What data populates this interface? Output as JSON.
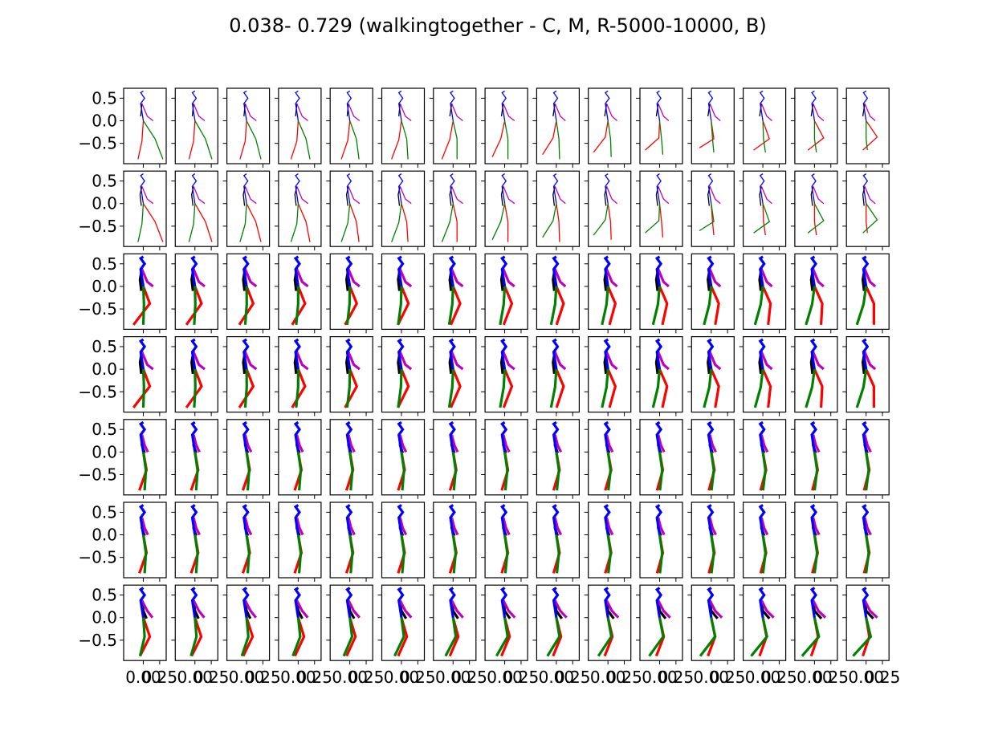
{
  "figure": {
    "title": "0.038- 0.729 (walkingtogether - C, M, R-5000-10000, B)"
  },
  "chart_data": {
    "type": "line",
    "grid": false,
    "layout": {
      "rows": 7,
      "cols": 15,
      "sharex": true,
      "sharey": true
    },
    "title": "0.038- 0.729 (walkingtogether - C, M, R-5000-10000, B)",
    "xlim": [
      -0.3,
      0.35
    ],
    "ylim": [
      -0.95,
      0.72
    ],
    "y_ticks": [
      0.5,
      0.0,
      -0.5
    ],
    "y_tick_labels": [
      "0.5",
      "0.0",
      "−0.5"
    ],
    "x_ticks": [
      0.0,
      0.25
    ],
    "x_tick_labels": [
      "0.00",
      "0.25"
    ],
    "limb_colors": {
      "spine": "#0000ff",
      "left_arm": "#000000",
      "right_arm": "#bf00bf",
      "left_leg": "#ff0000",
      "right_leg": "#008000"
    },
    "row_line_widths": [
      1.3,
      1.3,
      3.2,
      3.2,
      3.2,
      3.2,
      3.2
    ],
    "sequences": [
      {
        "row": 0,
        "frames": [
          {
            "rl": [
              [
                0.0,
                0.0
              ],
              [
                -0.02,
                -0.45
              ],
              [
                -0.08,
                -0.85
              ]
            ],
            "gl": [
              [
                0.0,
                0.0
              ],
              [
                0.18,
                -0.4
              ],
              [
                0.3,
                -0.85
              ]
            ],
            "ka": [
              [
                -0.02,
                0.38
              ],
              [
                -0.04,
                0.1
              ]
            ],
            "ma": [
              [
                -0.02,
                0.38
              ],
              [
                0.06,
                0.1
              ],
              [
                0.15,
                0.0
              ]
            ]
          },
          {
            "rl": [
              [
                0.0,
                0.0
              ],
              [
                -0.02,
                -0.45
              ],
              [
                -0.09,
                -0.85
              ]
            ],
            "gl": [
              [
                0.0,
                0.0
              ],
              [
                0.16,
                -0.4
              ],
              [
                0.26,
                -0.85
              ]
            ],
            "ka": [
              [
                -0.02,
                0.38
              ],
              [
                -0.04,
                0.1
              ]
            ],
            "ma": [
              [
                -0.02,
                0.38
              ],
              [
                0.06,
                0.1
              ],
              [
                0.15,
                0.0
              ]
            ]
          },
          {
            "rl": [
              [
                0.0,
                0.0
              ],
              [
                -0.02,
                -0.45
              ],
              [
                -0.1,
                -0.85
              ]
            ],
            "gl": [
              [
                0.0,
                0.0
              ],
              [
                0.14,
                -0.4
              ],
              [
                0.22,
                -0.85
              ]
            ],
            "ka": [
              [
                -0.02,
                0.38
              ],
              [
                -0.04,
                0.1
              ]
            ],
            "ma": [
              [
                -0.02,
                0.38
              ],
              [
                0.06,
                0.1
              ],
              [
                0.15,
                0.0
              ]
            ]
          },
          {
            "rl": [
              [
                0.0,
                0.0
              ],
              [
                -0.02,
                -0.45
              ],
              [
                -0.11,
                -0.85
              ]
            ],
            "gl": [
              [
                0.0,
                0.0
              ],
              [
                0.12,
                -0.4
              ],
              [
                0.18,
                -0.85
              ]
            ],
            "ka": [
              [
                -0.02,
                0.38
              ],
              [
                -0.04,
                0.1
              ]
            ],
            "ma": [
              [
                -0.02,
                0.38
              ],
              [
                0.06,
                0.1
              ],
              [
                0.15,
                0.0
              ]
            ]
          },
          {
            "rl": [
              [
                0.0,
                0.0
              ],
              [
                -0.03,
                -0.43
              ],
              [
                -0.13,
                -0.85
              ]
            ],
            "gl": [
              [
                0.0,
                0.0
              ],
              [
                0.1,
                -0.4
              ],
              [
                0.14,
                -0.85
              ]
            ],
            "ka": [
              [
                -0.02,
                0.38
              ],
              [
                -0.04,
                0.1
              ]
            ],
            "ma": [
              [
                -0.02,
                0.38
              ],
              [
                0.06,
                0.1
              ],
              [
                0.15,
                0.0
              ]
            ]
          },
          {
            "rl": [
              [
                0.0,
                0.0
              ],
              [
                -0.04,
                -0.42
              ],
              [
                -0.15,
                -0.85
              ]
            ],
            "gl": [
              [
                0.0,
                0.0
              ],
              [
                0.08,
                -0.4
              ],
              [
                0.1,
                -0.85
              ]
            ],
            "ka": [
              [
                -0.02,
                0.38
              ],
              [
                -0.04,
                0.1
              ]
            ],
            "ma": [
              [
                -0.02,
                0.38
              ],
              [
                0.06,
                0.1
              ],
              [
                0.15,
                0.0
              ]
            ]
          },
          {
            "rl": [
              [
                0.0,
                0.0
              ],
              [
                -0.05,
                -0.41
              ],
              [
                -0.17,
                -0.85
              ]
            ],
            "gl": [
              [
                0.0,
                0.0
              ],
              [
                0.06,
                -0.4
              ],
              [
                0.06,
                -0.85
              ]
            ],
            "ka": [
              [
                -0.02,
                0.38
              ],
              [
                -0.05,
                0.1
              ]
            ],
            "ma": [
              [
                -0.02,
                0.38
              ],
              [
                0.06,
                0.1
              ],
              [
                0.15,
                0.0
              ]
            ]
          },
          {
            "rl": [
              [
                0.0,
                0.0
              ],
              [
                -0.06,
                -0.4
              ],
              [
                -0.19,
                -0.8
              ]
            ],
            "gl": [
              [
                0.0,
                0.0
              ],
              [
                0.05,
                -0.4
              ],
              [
                0.05,
                -0.85
              ]
            ],
            "ka": [
              [
                -0.02,
                0.38
              ],
              [
                -0.05,
                0.1
              ]
            ],
            "ma": [
              [
                -0.02,
                0.38
              ],
              [
                0.06,
                0.1
              ],
              [
                0.15,
                0.0
              ]
            ]
          },
          {
            "rl": [
              [
                0.0,
                0.0
              ],
              [
                -0.05,
                -0.38
              ],
              [
                -0.21,
                -0.75
              ]
            ],
            "gl": [
              [
                0.0,
                0.0
              ],
              [
                0.04,
                -0.4
              ],
              [
                0.05,
                -0.85
              ]
            ],
            "ka": [
              [
                -0.02,
                0.38
              ],
              [
                -0.05,
                0.1
              ]
            ],
            "ma": [
              [
                -0.02,
                0.38
              ],
              [
                0.06,
                0.1
              ],
              [
                0.14,
                0.0
              ]
            ]
          },
          {
            "rl": [
              [
                0.0,
                0.0
              ],
              [
                -0.04,
                -0.36
              ],
              [
                -0.22,
                -0.7
              ]
            ],
            "gl": [
              [
                0.0,
                0.0
              ],
              [
                0.04,
                -0.4
              ],
              [
                0.05,
                -0.8
              ]
            ],
            "ka": [
              [
                -0.02,
                0.38
              ],
              [
                -0.05,
                0.1
              ]
            ],
            "ma": [
              [
                -0.02,
                0.38
              ],
              [
                0.06,
                0.1
              ],
              [
                0.14,
                0.0
              ]
            ]
          },
          {
            "rl": [
              [
                0.0,
                0.0
              ],
              [
                -0.01,
                -0.38
              ],
              [
                -0.22,
                -0.65
              ]
            ],
            "gl": [
              [
                0.0,
                0.0
              ],
              [
                0.03,
                -0.4
              ],
              [
                0.05,
                -0.75
              ]
            ],
            "ka": [
              [
                -0.02,
                0.38
              ],
              [
                -0.05,
                0.1
              ]
            ],
            "ma": [
              [
                -0.02,
                0.38
              ],
              [
                0.06,
                0.1
              ],
              [
                0.14,
                0.0
              ]
            ]
          },
          {
            "rl": [
              [
                0.0,
                0.0
              ],
              [
                0.04,
                -0.4
              ],
              [
                -0.18,
                -0.6
              ]
            ],
            "gl": [
              [
                0.0,
                0.0
              ],
              [
                0.02,
                -0.4
              ],
              [
                0.04,
                -0.7
              ]
            ],
            "ka": [
              [
                -0.02,
                0.38
              ],
              [
                -0.05,
                0.1
              ]
            ],
            "ma": [
              [
                -0.02,
                0.38
              ],
              [
                0.06,
                0.1
              ],
              [
                0.14,
                0.0
              ]
            ]
          },
          {
            "rl": [
              [
                0.0,
                0.0
              ],
              [
                0.1,
                -0.4
              ],
              [
                -0.14,
                -0.65
              ]
            ],
            "gl": [
              [
                0.0,
                0.0
              ],
              [
                0.01,
                -0.4
              ],
              [
                0.04,
                -0.7
              ]
            ],
            "ka": [
              [
                -0.02,
                0.38
              ],
              [
                -0.05,
                0.1
              ]
            ],
            "ma": [
              [
                -0.02,
                0.38
              ],
              [
                0.06,
                0.1
              ],
              [
                0.14,
                0.0
              ]
            ]
          },
          {
            "rl": [
              [
                0.0,
                0.0
              ],
              [
                0.14,
                -0.38
              ],
              [
                -0.1,
                -0.65
              ]
            ],
            "gl": [
              [
                0.0,
                0.0
              ],
              [
                0.0,
                -0.4
              ],
              [
                0.03,
                -0.7
              ]
            ],
            "ka": [
              [
                -0.02,
                0.38
              ],
              [
                -0.05,
                0.1
              ]
            ],
            "ma": [
              [
                -0.02,
                0.38
              ],
              [
                0.06,
                0.1
              ],
              [
                0.14,
                0.0
              ]
            ]
          },
          {
            "rl": [
              [
                0.0,
                0.0
              ],
              [
                0.17,
                -0.36
              ],
              [
                -0.05,
                -0.65
              ]
            ],
            "gl": [
              [
                0.0,
                0.0
              ],
              [
                0.0,
                -0.4
              ],
              [
                0.02,
                -0.65
              ]
            ],
            "ka": [
              [
                -0.02,
                0.38
              ],
              [
                -0.05,
                0.1
              ]
            ],
            "ma": [
              [
                -0.02,
                0.38
              ],
              [
                0.06,
                0.1
              ],
              [
                0.14,
                0.0
              ]
            ]
          }
        ]
      }
    ]
  }
}
